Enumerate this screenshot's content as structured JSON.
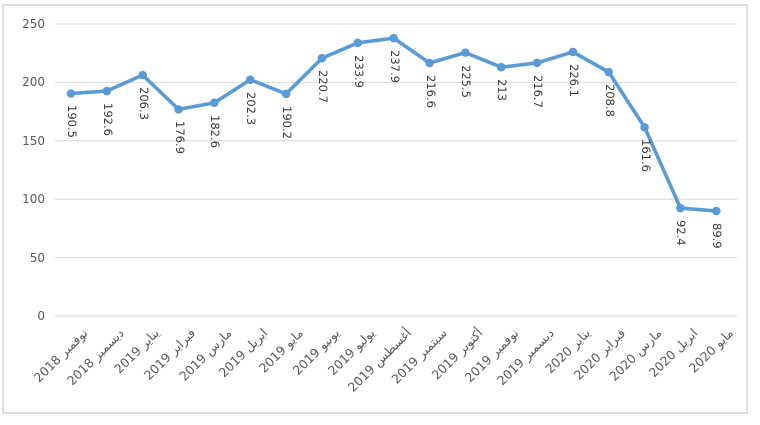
{
  "chart_data": {
    "type": "line",
    "title": "",
    "categories": [
      "نوفمبر 2018",
      "ديسمبر 2018",
      "يناير 2019",
      "فبراير 2019",
      "مارس 2019",
      "ابريل 2019",
      "مايو 2019",
      "يونيو 2019",
      "يوليو 2019",
      "أغسطس 2019",
      "سبتمبر 2019",
      "أكتوبر 2019",
      "نوفمبر 2019",
      "ديسمبر 2019",
      "يناير 2020",
      "فبراير 2020",
      "مارس 2020",
      "ابريل 2020",
      "مايو 2020"
    ],
    "series": [
      {
        "name": "series-1",
        "values": [
          190.5,
          192.6,
          206.3,
          176.9,
          182.6,
          202.3,
          190.2,
          220.7,
          233.9,
          237.9,
          216.6,
          225.5,
          213,
          216.7,
          226.1,
          208.8,
          161.6,
          92.4,
          89.9
        ],
        "point_labels": [
          "190.5",
          "192.6",
          "206.3",
          "176.9",
          "182.6",
          "202.3",
          "190.2",
          "220.7",
          "233.9",
          "237.9",
          "216.6",
          "225.5",
          "213",
          "216.7",
          "226.1",
          "208.8",
          "161.6",
          "92.4",
          "89.9"
        ]
      }
    ],
    "xlabel": "",
    "ylabel": "",
    "ylim": [
      0,
      250
    ],
    "y_ticks": [
      "0",
      "50",
      "100",
      "150",
      "200",
      "250"
    ],
    "y_tick_values": [
      0,
      50,
      100,
      150,
      200,
      250
    ],
    "grid": true,
    "legend": "none",
    "marker": "circle",
    "data_label_rotation_deg": 90,
    "category_label_rotation_deg": -45,
    "colors": {
      "line": "#5B9BD5",
      "marker": "#5B9BD5",
      "grid": "#d9d9d9",
      "frame": "#dedede",
      "axis_text": "#595959",
      "data_label_text": "#3b3b3b",
      "background": "#ffffff"
    }
  }
}
